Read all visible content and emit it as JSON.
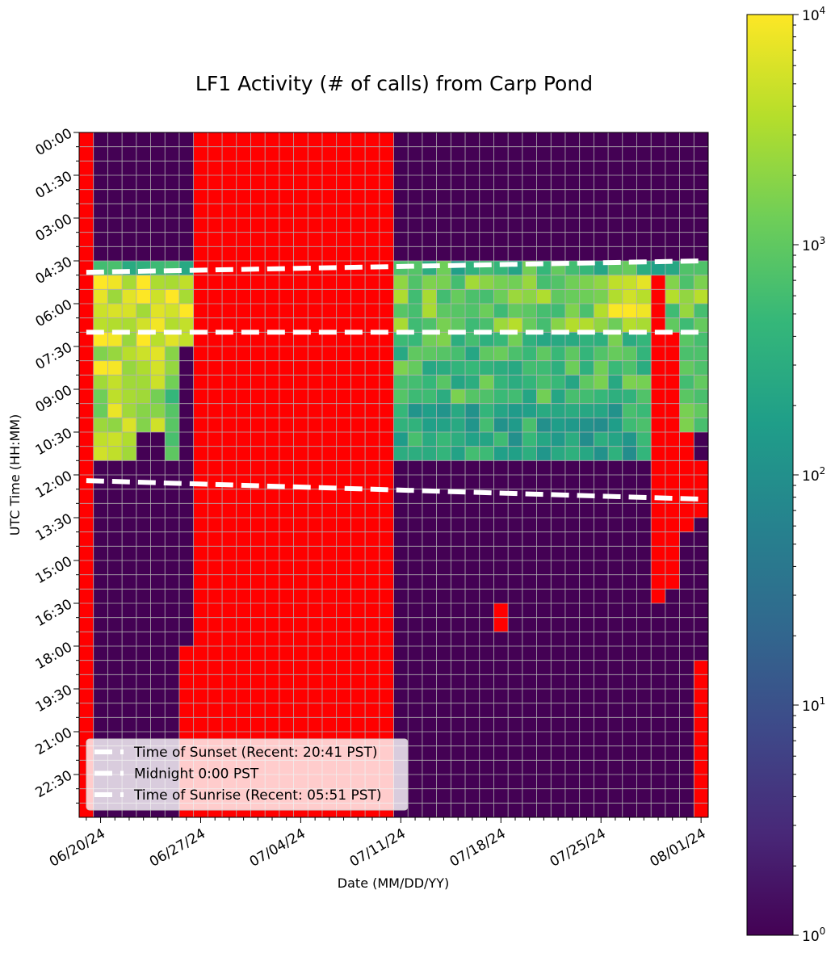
{
  "chart_data": {
    "type": "heatmap",
    "title": "LF1 Activity (# of calls) from Carp Pond",
    "xlabel": "Date (MM/DD/YY)",
    "ylabel": "UTC Time (HH:MM)",
    "x_tick_labels": [
      "06/20/24",
      "06/27/24",
      "07/04/24",
      "07/11/24",
      "07/18/24",
      "07/25/24",
      "08/01/24"
    ],
    "x_tick_day_index": [
      1,
      8,
      15,
      22,
      29,
      36,
      43
    ],
    "y_tick_labels": [
      "00:00",
      "01:30",
      "03:00",
      "04:30",
      "06:00",
      "07:30",
      "09:00",
      "10:30",
      "12:00",
      "13:30",
      "15:00",
      "16:30",
      "18:00",
      "19:30",
      "21:00",
      "22:30"
    ],
    "n_days": 44,
    "n_intervals": 48,
    "interval_minutes": 30,
    "colorbar": {
      "scale": "log",
      "min": 1,
      "max": 10000,
      "ticks": [
        {
          "value": 1,
          "base": "10",
          "exp": "0"
        },
        {
          "value": 10,
          "base": "10",
          "exp": "1"
        },
        {
          "value": 100,
          "base": "10",
          "exp": "2"
        },
        {
          "value": 1000,
          "base": "10",
          "exp": "3"
        },
        {
          "value": 10000,
          "base": "10",
          "exp": "4"
        }
      ],
      "colormap": [
        "#440154",
        "#482878",
        "#3e4989",
        "#31688e",
        "#26828e",
        "#1f9e89",
        "#35b779",
        "#6ece58",
        "#b5de2b",
        "#fde725"
      ]
    },
    "missing_color": "#ff0000",
    "grid": true,
    "legend": {
      "placement": "lower-left",
      "entries": [
        "Time of Sunset (Recent: 20:41 PST)",
        "Midnight 0:00 PST",
        "Time of Sunrise (Recent: 05:51 PST)"
      ]
    },
    "reference_lines": [
      {
        "name": "Time of Sunset (Recent: 20:41 PST)",
        "start_hour_utc": 4.9,
        "end_hour_utc": 4.5
      },
      {
        "name": "Midnight 0:00 PST",
        "start_hour_utc": 7.0,
        "end_hour_utc": 7.0
      },
      {
        "name": "Time of Sunrise (Recent: 05:51 PST)",
        "start_hour_utc": 12.2,
        "end_hour_utc": 12.85
      }
    ],
    "missing_data": [
      {
        "day_from": 0,
        "day_to": 0,
        "slot_from": 0,
        "slot_to": 47
      },
      {
        "day_from": 8,
        "day_to": 21,
        "slot_from": 0,
        "slot_to": 47
      },
      {
        "day_from": 7,
        "day_to": 7,
        "slot_from": 36,
        "slot_to": 47
      },
      {
        "day_from": 29,
        "day_to": 29,
        "slot_from": 33,
        "slot_to": 34
      },
      {
        "day_from": 40,
        "day_to": 40,
        "slot_from": 10,
        "slot_to": 32
      },
      {
        "day_from": 41,
        "day_to": 41,
        "slot_from": 14,
        "slot_to": 31
      },
      {
        "day_from": 42,
        "day_to": 42,
        "slot_from": 21,
        "slot_to": 27
      },
      {
        "day_from": 43,
        "day_to": 43,
        "slot_from": 23,
        "slot_to": 26
      },
      {
        "day_from": 43,
        "day_to": 43,
        "slot_from": 37,
        "slot_to": 47
      }
    ],
    "activity_blocks": [
      {
        "day_from": 1,
        "day_to": 7,
        "slot_from": 9,
        "slot_to": 9,
        "value": 600
      },
      {
        "day_from": 1,
        "day_to": 7,
        "slot_from": 10,
        "slot_to": 14,
        "value": 6000
      },
      {
        "day_from": 1,
        "day_to": 6,
        "slot_from": 15,
        "slot_to": 16,
        "value": 4000
      },
      {
        "day_from": 1,
        "day_to": 5,
        "slot_from": 17,
        "slot_to": 20,
        "value": 3000
      },
      {
        "day_from": 1,
        "day_to": 3,
        "slot_from": 21,
        "slot_to": 22,
        "value": 2000
      },
      {
        "day_from": 6,
        "day_to": 6,
        "slot_from": 17,
        "slot_to": 22,
        "value": 1200
      },
      {
        "day_from": 22,
        "day_to": 43,
        "slot_from": 9,
        "slot_to": 9,
        "value": 500
      },
      {
        "day_from": 22,
        "day_to": 39,
        "slot_from": 10,
        "slot_to": 13,
        "value": 1500
      },
      {
        "day_from": 22,
        "day_to": 39,
        "slot_from": 14,
        "slot_to": 18,
        "value": 600
      },
      {
        "day_from": 22,
        "day_to": 39,
        "slot_from": 19,
        "slot_to": 22,
        "value": 250
      },
      {
        "day_from": 41,
        "day_to": 43,
        "slot_from": 10,
        "slot_to": 20,
        "value": 1500
      },
      {
        "day_from": 37,
        "day_to": 39,
        "slot_from": 10,
        "slot_to": 12,
        "value": 5000
      }
    ]
  }
}
